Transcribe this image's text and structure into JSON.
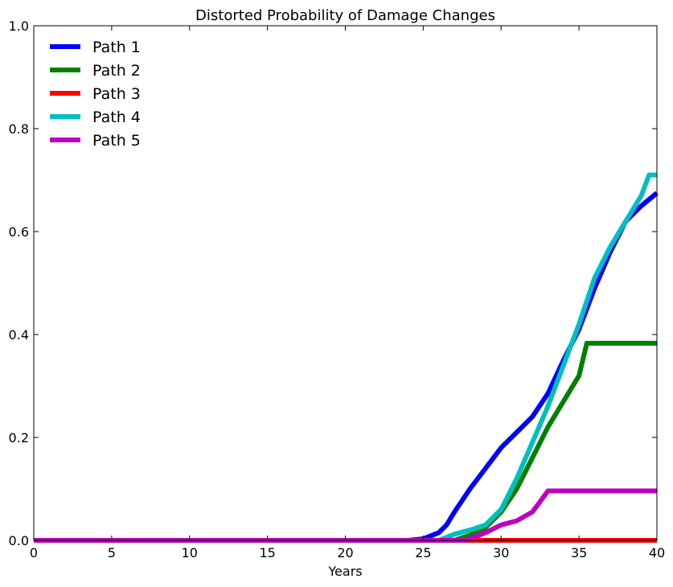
{
  "chart_data": {
    "type": "line",
    "title": "Distorted Probability of Damage Changes",
    "xlabel": "Years",
    "ylabel": "",
    "xlim": [
      0,
      40
    ],
    "ylim": [
      0,
      1
    ],
    "x_ticks": [
      0,
      5,
      10,
      15,
      20,
      25,
      30,
      35,
      40
    ],
    "x_tick_labels": [
      "0",
      "5",
      "10",
      "15",
      "20",
      "25",
      "30",
      "35",
      "40"
    ],
    "y_ticks": [
      0,
      0.2,
      0.4,
      0.6,
      0.8,
      1.0
    ],
    "y_tick_labels": [
      "0.0",
      "0.2",
      "0.4",
      "0.6",
      "0.8",
      "1.0"
    ],
    "grid": false,
    "legend_position": "top-left",
    "series": [
      {
        "name": "Path 1",
        "color": "#0000ff",
        "points": [
          [
            0,
            0
          ],
          [
            24,
            0
          ],
          [
            25,
            0.003
          ],
          [
            26,
            0.015
          ],
          [
            26.5,
            0.03
          ],
          [
            27,
            0.055
          ],
          [
            28,
            0.1
          ],
          [
            29,
            0.14
          ],
          [
            30,
            0.18
          ],
          [
            31,
            0.21
          ],
          [
            32,
            0.24
          ],
          [
            33,
            0.285
          ],
          [
            34,
            0.35
          ],
          [
            35,
            0.41
          ],
          [
            36,
            0.49
          ],
          [
            37,
            0.56
          ],
          [
            38,
            0.62
          ],
          [
            39,
            0.65
          ],
          [
            40,
            0.675
          ]
        ]
      },
      {
        "name": "Path 2",
        "color": "#008000",
        "points": [
          [
            0,
            0
          ],
          [
            27,
            0
          ],
          [
            28,
            0.01
          ],
          [
            29,
            0.025
          ],
          [
            30,
            0.055
          ],
          [
            31,
            0.1
          ],
          [
            32,
            0.16
          ],
          [
            33,
            0.22
          ],
          [
            34,
            0.27
          ],
          [
            35,
            0.32
          ],
          [
            35.5,
            0.383
          ],
          [
            36,
            0.383
          ],
          [
            40,
            0.383
          ]
        ]
      },
      {
        "name": "Path 3",
        "color": "#ff0000",
        "points": [
          [
            0,
            0
          ],
          [
            40,
            0
          ]
        ]
      },
      {
        "name": "Path 4",
        "color": "#00bfbf",
        "points": [
          [
            0,
            0
          ],
          [
            26,
            0
          ],
          [
            27,
            0.012
          ],
          [
            28,
            0.02
          ],
          [
            29,
            0.03
          ],
          [
            30,
            0.06
          ],
          [
            31,
            0.12
          ],
          [
            32,
            0.19
          ],
          [
            33,
            0.26
          ],
          [
            34,
            0.34
          ],
          [
            35,
            0.42
          ],
          [
            36,
            0.51
          ],
          [
            37,
            0.57
          ],
          [
            38,
            0.62
          ],
          [
            39,
            0.67
          ],
          [
            39.5,
            0.71
          ],
          [
            40,
            0.71
          ]
        ]
      },
      {
        "name": "Path 5",
        "color": "#bf00bf",
        "points": [
          [
            0,
            0
          ],
          [
            27.5,
            0
          ],
          [
            28,
            0.003
          ],
          [
            29,
            0.015
          ],
          [
            30,
            0.03
          ],
          [
            31,
            0.038
          ],
          [
            32,
            0.055
          ],
          [
            32.5,
            0.075
          ],
          [
            33,
            0.096
          ],
          [
            40,
            0.096
          ]
        ]
      }
    ]
  }
}
